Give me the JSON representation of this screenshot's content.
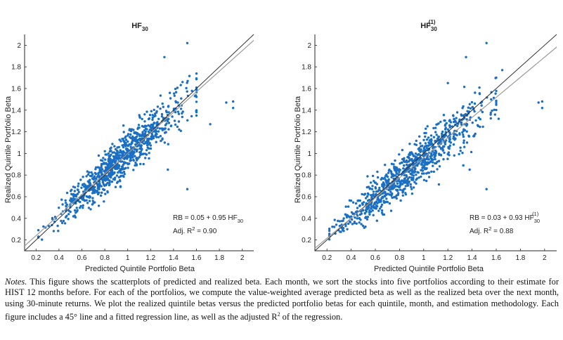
{
  "colors": {
    "points": "#1a6fc4",
    "line45": "#333333",
    "fit": "#9a9a9a",
    "axis": "#262626",
    "text": "#222222"
  },
  "chart_data": [
    {
      "type": "scatter",
      "title": "HF",
      "title_sub": "30",
      "title_sup": "",
      "xlabel": "Predicted Quintile Portfolio Beta",
      "ylabel": "Realized Quintile Portfolio Beta",
      "xlim": [
        0.1,
        2.1
      ],
      "ylim": [
        0.1,
        2.1
      ],
      "xticks": [
        "0.2",
        "0.4",
        "0.6",
        "0.8",
        "1",
        "1.2",
        "1.4",
        "1.6",
        "1.8",
        "2"
      ],
      "yticks": [
        "0.2",
        "0.4",
        "0.6",
        "0.8",
        "1",
        "1.2",
        "1.4",
        "1.6",
        "1.8",
        "2"
      ],
      "fit": {
        "intercept": 0.05,
        "slope": 0.95
      },
      "annotation": {
        "eq_prefix": "RB = 0.05 + 0.95 HF",
        "eq_sub": "30",
        "eq_sup": "",
        "r2_prefix": "Adj. R",
        "r2_sup": "2",
        "r2_suffix": " = 0.90"
      },
      "points": {
        "seed": 7,
        "count": 900,
        "noise": 0.075,
        "clusters": [
          {
            "mean": 0.95,
            "sd": 0.28,
            "weight": 1.0
          }
        ],
        "outliers": [
          [
            1.52,
            2.02
          ],
          [
            1.32,
            1.89
          ],
          [
            1.52,
            0.67
          ],
          [
            1.86,
            1.47
          ],
          [
            1.92,
            1.42
          ],
          [
            1.92,
            1.48
          ],
          [
            1.35,
            0.85
          ],
          [
            1.72,
            1.27
          ],
          [
            1.6,
            1.35
          ]
        ]
      }
    },
    {
      "type": "scatter",
      "title": "HF",
      "title_sub": "30",
      "title_sup": "(1)",
      "xlabel": "Predicted Quintile Portfolio Beta",
      "ylabel": "Realized Quintile Portfolio Beta",
      "xlim": [
        0.1,
        2.1
      ],
      "ylim": [
        0.1,
        2.1
      ],
      "xticks": [
        "0.2",
        "0.4",
        "0.6",
        "0.8",
        "1",
        "1.2",
        "1.4",
        "1.6",
        "1.8",
        "2"
      ],
      "yticks": [
        "0.2",
        "0.4",
        "0.6",
        "0.8",
        "1",
        "1.2",
        "1.4",
        "1.6",
        "1.8",
        "2"
      ],
      "fit": {
        "intercept": 0.03,
        "slope": 0.93
      },
      "annotation": {
        "eq_prefix": "RB = 0.03 + 0.93 HF",
        "eq_sub": "30",
        "eq_sup": "(1)",
        "r2_prefix": "Adj. R",
        "r2_sup": "2",
        "r2_suffix": " = 0.88"
      },
      "points": {
        "seed": 19,
        "count": 900,
        "noise": 0.08,
        "clusters": [
          {
            "mean": 0.9,
            "sd": 0.3,
            "weight": 1.0
          }
        ],
        "outliers": [
          [
            1.52,
            2.02
          ],
          [
            1.35,
            1.89
          ],
          [
            1.52,
            0.67
          ],
          [
            1.95,
            1.47
          ],
          [
            1.98,
            1.42
          ],
          [
            1.98,
            1.48
          ],
          [
            1.38,
            0.85
          ],
          [
            1.62,
            1.32
          ],
          [
            1.65,
            1.77
          ],
          [
            1.2,
            1.65
          ]
        ]
      }
    }
  ],
  "notes": {
    "label": "Notes.",
    "text": " This figure shows the scatterplots of predicted and realized beta. Each month, we sort the stocks into five portfolios according to their estimate for HIST 12 months before. For each of the portfolios, we compute the value-weighted average predicted beta as well as the realized beta over the next month, using 30-minute returns. We plot the realized quintile betas versus the predicted portfolio betas for each quintile, month, and estimation methodology. Each figure includes a 45° line and a fitted regression line, as well as the adjusted R",
    "sup": "2",
    "tail": " of the regression."
  }
}
